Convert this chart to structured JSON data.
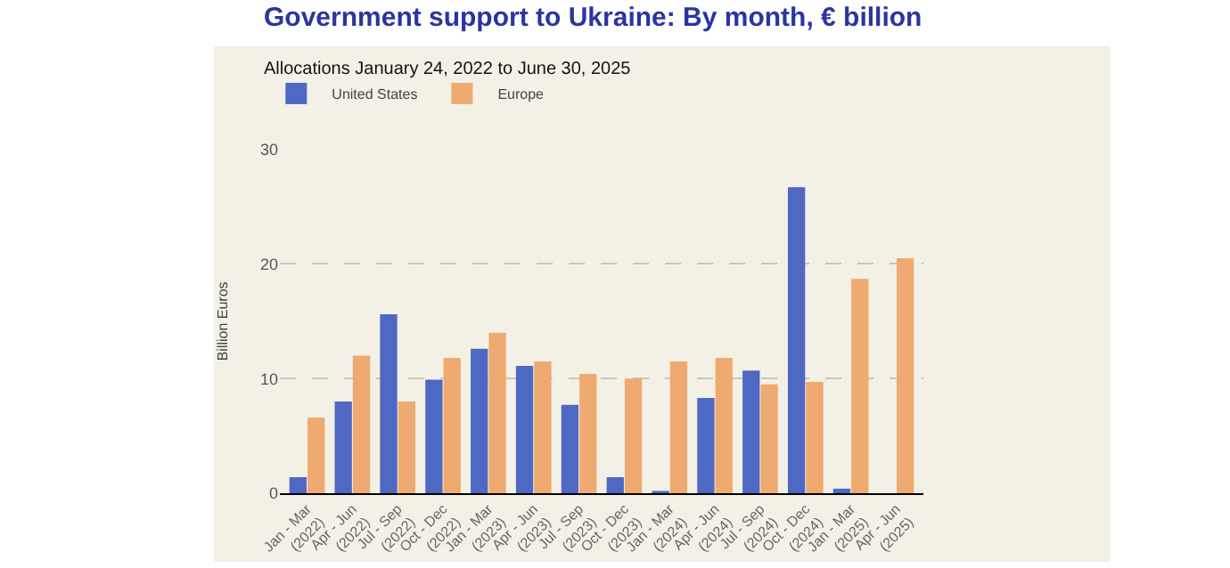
{
  "chart_data": {
    "type": "bar",
    "title": "Government support to Ukraine: By month, € billion",
    "subtitle": "Allocations January 24, 2022 to June 30, 2025",
    "ylabel": "Billion Euros",
    "categories": [
      "Jan - Mar\n(2022)",
      "Apr - Jun\n(2022)",
      "Jul - Sep\n(2022)",
      "Oct - Dec\n(2022)",
      "Jan - Mar\n(2023)",
      "Apr - Jun\n(2023)",
      "Jul - Sep\n(2023)",
      "Oct - Dec\n(2023)",
      "Jan - Mar\n(2024)",
      "Apr - Jun\n(2024)",
      "Jul - Sep\n(2024)",
      "Oct - Dec\n(2024)",
      "Jan - Mar\n(2025)",
      "Apr - Jun\n(2025)"
    ],
    "series": [
      {
        "name": "United States",
        "color": "#4f68c4",
        "values": [
          1.4,
          8.0,
          15.6,
          9.9,
          12.6,
          11.1,
          7.7,
          1.4,
          0.2,
          8.3,
          10.7,
          26.7,
          0.4,
          null
        ]
      },
      {
        "name": "Europe",
        "color": "#eeaa70",
        "values": [
          6.6,
          12.0,
          8.0,
          11.8,
          14.0,
          11.5,
          10.4,
          10.0,
          11.5,
          11.8,
          9.5,
          9.7,
          18.7,
          20.5
        ]
      }
    ],
    "ylim": [
      0,
      30
    ],
    "yticks": [
      0,
      10,
      20,
      30
    ],
    "grid": "y",
    "legend": "top left"
  }
}
